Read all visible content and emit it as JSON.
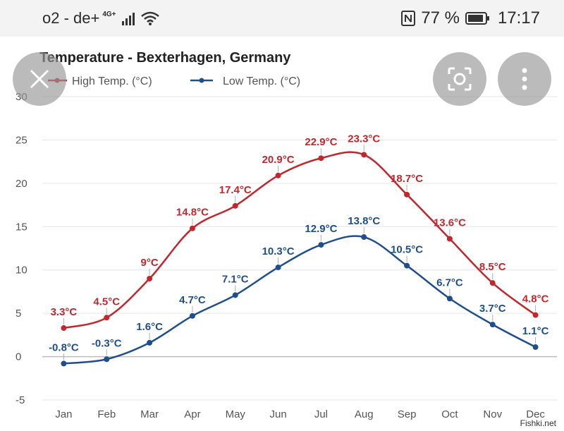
{
  "statusbar": {
    "carrier": "o2 - de+",
    "network": "4G+",
    "battery_percent": "77 %",
    "time": "17:17",
    "icons": [
      "signal-icon",
      "wifi-icon",
      "nfc-icon",
      "battery-icon"
    ]
  },
  "overlay": {
    "close_icon": "close-icon",
    "lens_icon": "lens-icon",
    "menu_icon": "more-vertical-icon"
  },
  "watermark": "Fishki.net",
  "colors": {
    "high": "#c0282d",
    "low": "#1f4e8c",
    "grid": "#e6e6e6"
  },
  "chart_data": {
    "type": "line",
    "title": "Temperature - Bexterhagen, Germany",
    "categories": [
      "Jan",
      "Feb",
      "Mar",
      "Apr",
      "May",
      "Jun",
      "Jul",
      "Aug",
      "Sep",
      "Oct",
      "Nov",
      "Dec"
    ],
    "series": [
      {
        "name": "High Temp. (°C)",
        "values": [
          3.3,
          4.5,
          9,
          14.8,
          17.4,
          20.9,
          22.9,
          23.3,
          18.7,
          13.6,
          8.5,
          4.8
        ],
        "labels": [
          "3.3°C",
          "4.5°C",
          "9°C",
          "14.8°C",
          "17.4°C",
          "20.9°C",
          "22.9°C",
          "23.3°C",
          "18.7°C",
          "13.6°C",
          "8.5°C",
          "4.8°C"
        ]
      },
      {
        "name": "Low Temp. (°C)",
        "values": [
          -0.8,
          -0.3,
          1.6,
          4.7,
          7.1,
          10.3,
          12.9,
          13.8,
          10.5,
          6.7,
          3.7,
          1.1
        ],
        "labels": [
          "-0.8°C",
          "-0.3°C",
          "1.6°C",
          "4.7°C",
          "7.1°C",
          "10.3°C",
          "12.9°C",
          "13.8°C",
          "10.5°C",
          "6.7°C",
          "3.7°C",
          "1.1°C"
        ]
      }
    ],
    "yticks": [
      -5,
      0,
      5,
      10,
      15,
      20,
      25,
      30
    ],
    "ylim": [
      -5,
      30
    ],
    "legend": "top-left",
    "grid": true
  }
}
